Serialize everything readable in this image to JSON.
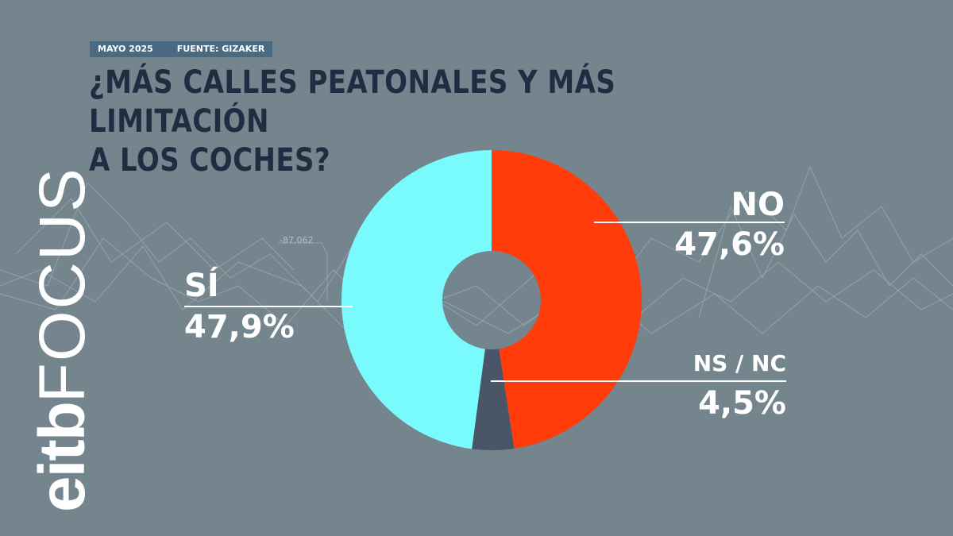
{
  "header": {
    "date": "MAYO 2025",
    "source": "FUENTE: GIZAKER",
    "title_line1": "¿MÁS CALLES PEATONALES Y MÁS LIMITACIÓN",
    "title_line2": "A LOS COCHES?"
  },
  "brand": {
    "part1": "eitb",
    "part2": "FOCUS"
  },
  "background": {
    "decor_label": "-87.062"
  },
  "colors": {
    "si": "#79fbfd",
    "no": "#ff3c0a",
    "nsnc": "#4a5568",
    "background": "#75858d",
    "title": "#1f2d42"
  },
  "chart_data": {
    "type": "pie",
    "donut": true,
    "title": "¿MÁS CALLES PEATONALES Y MÁS LIMITACIÓN A LOS COCHES?",
    "slices": [
      {
        "label": "NO",
        "value": 47.6,
        "display": "47,6%",
        "color": "#ff3c0a"
      },
      {
        "label": "NS / NC",
        "value": 4.5,
        "display": "4,5%",
        "color": "#4a5568"
      },
      {
        "label": "SÍ",
        "value": 47.9,
        "display": "47,9%",
        "color": "#79fbfd"
      }
    ]
  }
}
